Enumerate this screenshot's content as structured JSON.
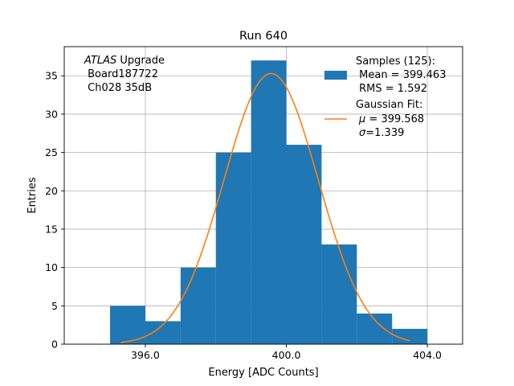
{
  "chart_data": {
    "type": "bar",
    "title": "Run 640",
    "xlabel": "Energy [ADC Counts]",
    "ylabel": "Entries",
    "xlim": [
      393.7,
      405.0
    ],
    "ylim": [
      0,
      38.8
    ],
    "grid": true,
    "x_ticks": [
      396,
      400,
      404
    ],
    "x_tick_labels": [
      "396.0",
      "400.0",
      "404.0"
    ],
    "y_ticks": [
      0,
      5,
      10,
      15,
      20,
      25,
      30,
      35
    ],
    "y_tick_labels": [
      "0",
      "5",
      "10",
      "15",
      "20",
      "25",
      "30",
      "35"
    ],
    "bins": [
      {
        "x0": 395,
        "x1": 396,
        "count": 5
      },
      {
        "x0": 396,
        "x1": 397,
        "count": 3
      },
      {
        "x0": 397,
        "x1": 398,
        "count": 10
      },
      {
        "x0": 398,
        "x1": 399,
        "count": 25
      },
      {
        "x0": 399,
        "x1": 400,
        "count": 37
      },
      {
        "x0": 400,
        "x1": 401,
        "count": 26
      },
      {
        "x0": 401,
        "x1": 402,
        "count": 13
      },
      {
        "x0": 402,
        "x1": 403,
        "count": 4
      },
      {
        "x0": 403,
        "x1": 404,
        "count": 2
      }
    ],
    "fit": {
      "amplitude": 35.3,
      "mu": 399.568,
      "sigma": 1.339,
      "x_start": 395.3,
      "x_end": 403.5
    },
    "annotation": {
      "italic": "ATLAS",
      "rest": " Upgrade",
      "line2": " Board187722",
      "line3": " Ch028 35dB"
    },
    "legend": {
      "position": "top-right",
      "samples_lines": [
        "Samples (125):",
        " Mean = 399.463",
        " RMS = 1.592"
      ],
      "fit_title": "Gaussian Fit:",
      "fit_mu_symbol": "μ",
      "fit_mu_text": " = 399.568",
      "fit_sigma_symbol": "σ",
      "fit_sigma_text": "=1.339"
    },
    "colors": {
      "bar": "#1f77b4",
      "fit": "#ff7f0e",
      "grid": "#b0b0b0"
    }
  }
}
